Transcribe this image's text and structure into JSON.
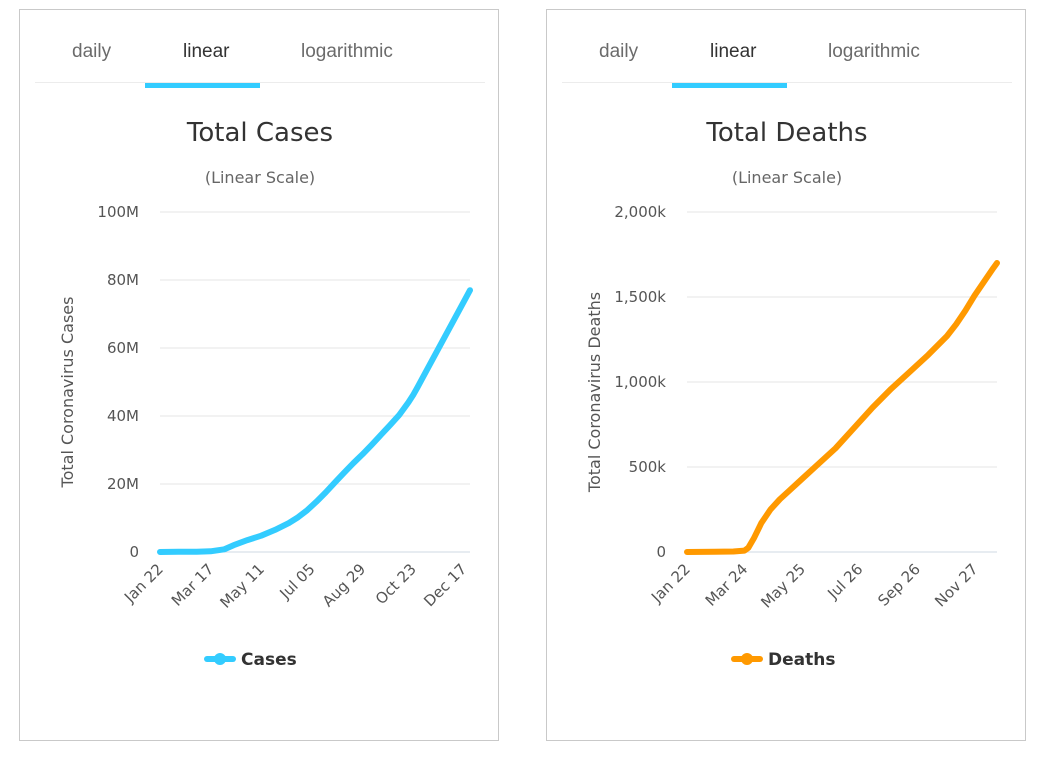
{
  "tabs": [
    "daily",
    "linear",
    "logarithmic"
  ],
  "active_tab": 1,
  "chart_data": [
    {
      "id": "cases",
      "type": "line",
      "title": "Total Cases",
      "subtitle": "(Linear Scale)",
      "ylabel": "Total Coronavirus Cases",
      "xlabel": "",
      "ylim": [
        0,
        100000000
      ],
      "yticks": [
        0,
        20000000,
        40000000,
        60000000,
        80000000,
        100000000
      ],
      "ytick_labels": [
        "0",
        "20M",
        "40M",
        "60M",
        "80M",
        "100M"
      ],
      "xlim": [
        0,
        337
      ],
      "xticks": [
        0,
        55,
        110,
        165,
        220,
        275,
        330
      ],
      "xtick_labels": [
        "Jan 22",
        "Mar 17",
        "May 11",
        "Jul 05",
        "Aug 29",
        "Oct 23",
        "Dec 17"
      ],
      "series": [
        {
          "name": "Cases",
          "color": "#33ccff",
          "x": [
            0,
            20,
            40,
            55,
            70,
            80,
            95,
            110,
            125,
            140,
            150,
            160,
            170,
            180,
            190,
            200,
            210,
            220,
            230,
            240,
            250,
            260,
            270,
            275,
            280,
            290,
            300,
            310,
            320,
            330,
            337
          ],
          "y": [
            500,
            80000,
            100000,
            200000,
            800000,
            2000000,
            3500000,
            4800000,
            6500000,
            8500000,
            10200000,
            12300000,
            14800000,
            17500000,
            20400000,
            23300000,
            26100000,
            28700000,
            31500000,
            34400000,
            37300000,
            40300000,
            44000000,
            46100000,
            48500000,
            53500000,
            58500000,
            63500000,
            68500000,
            73500000,
            77000000
          ]
        }
      ]
    },
    {
      "id": "deaths",
      "type": "line",
      "title": "Total Deaths",
      "subtitle": "(Linear Scale)",
      "ylabel": "Total Coronavirus Deaths",
      "xlabel": "",
      "ylim": [
        0,
        2000000
      ],
      "yticks": [
        0,
        500000,
        1000000,
        1500000,
        2000000
      ],
      "ytick_labels": [
        "0",
        "500k",
        "1,000k",
        "1,500k",
        "2,000k"
      ],
      "xlim": [
        0,
        334
      ],
      "xticks": [
        0,
        62,
        124,
        186,
        248,
        310
      ],
      "xtick_labels": [
        "Jan 22",
        "Mar 24",
        "May 25",
        "Jul 26",
        "Sep 26",
        "Nov 27"
      ],
      "series": [
        {
          "name": "Deaths",
          "color": "#ff9900",
          "x": [
            0,
            30,
            50,
            62,
            66,
            72,
            80,
            90,
            100,
            110,
            124,
            140,
            160,
            180,
            200,
            220,
            240,
            260,
            280,
            290,
            300,
            310,
            320,
            330,
            334
          ],
          "y": [
            0,
            2000,
            3000,
            8000,
            25000,
            80000,
            170000,
            250000,
            310000,
            360000,
            430000,
            510000,
            610000,
            730000,
            850000,
            960000,
            1060000,
            1160000,
            1270000,
            1340000,
            1420000,
            1510000,
            1590000,
            1670000,
            1700000
          ]
        }
      ]
    }
  ]
}
